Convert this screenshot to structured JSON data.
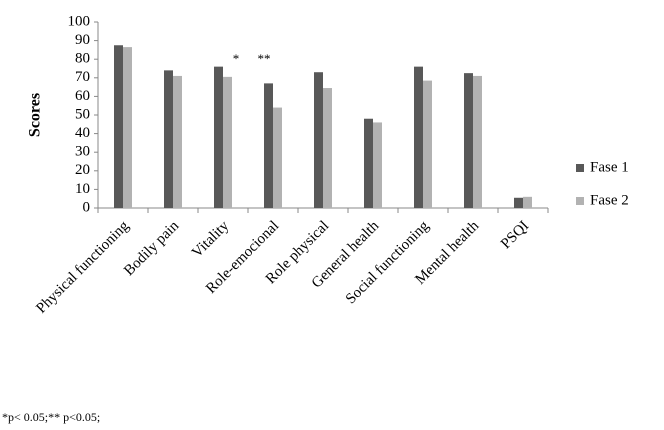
{
  "chart_data": {
    "type": "bar",
    "categories": [
      "Physical functioning",
      "Bodily pain",
      "Vitality",
      "Role-emocional",
      "Role physical",
      "General health",
      "Social functioning",
      "Mental health",
      "PSQI"
    ],
    "series": [
      {
        "name": "Fase 1",
        "color": "#585858",
        "values": [
          87.5,
          74,
          76,
          67,
          73,
          48,
          76,
          72.5,
          5.5
        ]
      },
      {
        "name": "Fase 2",
        "color": "#b2b2b2",
        "values": [
          86.5,
          71,
          70.5,
          54,
          64.5,
          46,
          68.5,
          71,
          6
        ]
      }
    ],
    "ylabel": "Scores",
    "ylim": [
      0,
      100
    ],
    "yticks": [
      0,
      10,
      20,
      30,
      40,
      50,
      60,
      70,
      80,
      90,
      100
    ],
    "annotations": [
      "*",
      "**"
    ],
    "note": "*p< 0.05;** p<0.05;",
    "legend": "right"
  }
}
